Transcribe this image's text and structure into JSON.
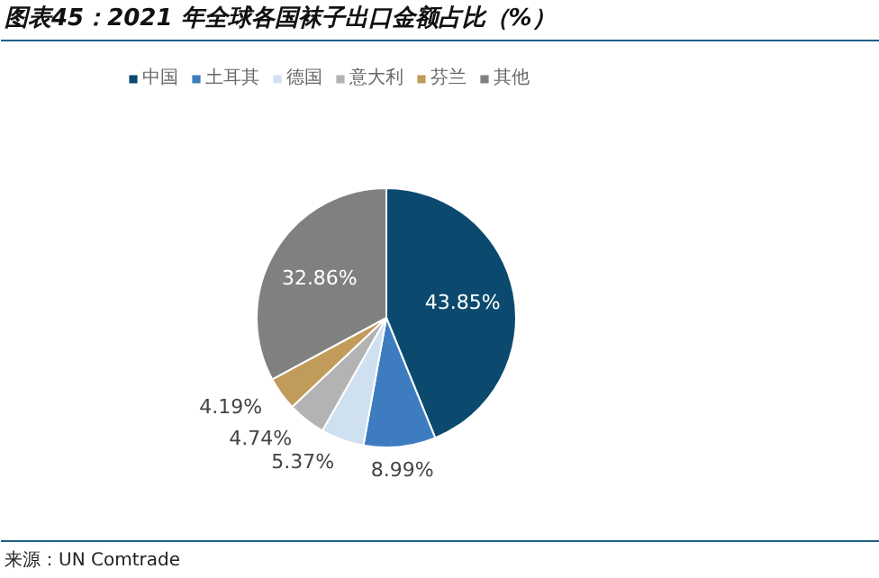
{
  "chart_data": {
    "type": "pie",
    "title": "图表45：2021 年全球各国袜子出口金额占比（%）",
    "categories": [
      "中国",
      "土耳其",
      "德国",
      "意大利",
      "芬兰",
      "其他"
    ],
    "values": [
      43.85,
      8.99,
      5.37,
      4.74,
      4.19,
      32.86
    ],
    "value_labels": [
      "43.85%",
      "8.99%",
      "5.37%",
      "4.74%",
      "4.19%",
      "32.86%"
    ],
    "colors": [
      "#0b4a6e",
      "#3e7cc0",
      "#cfe0f1",
      "#b3b3b3",
      "#c19b5a",
      "#808080"
    ],
    "legend": "top",
    "annotations": [
      "来源：UN Comtrade"
    ]
  }
}
